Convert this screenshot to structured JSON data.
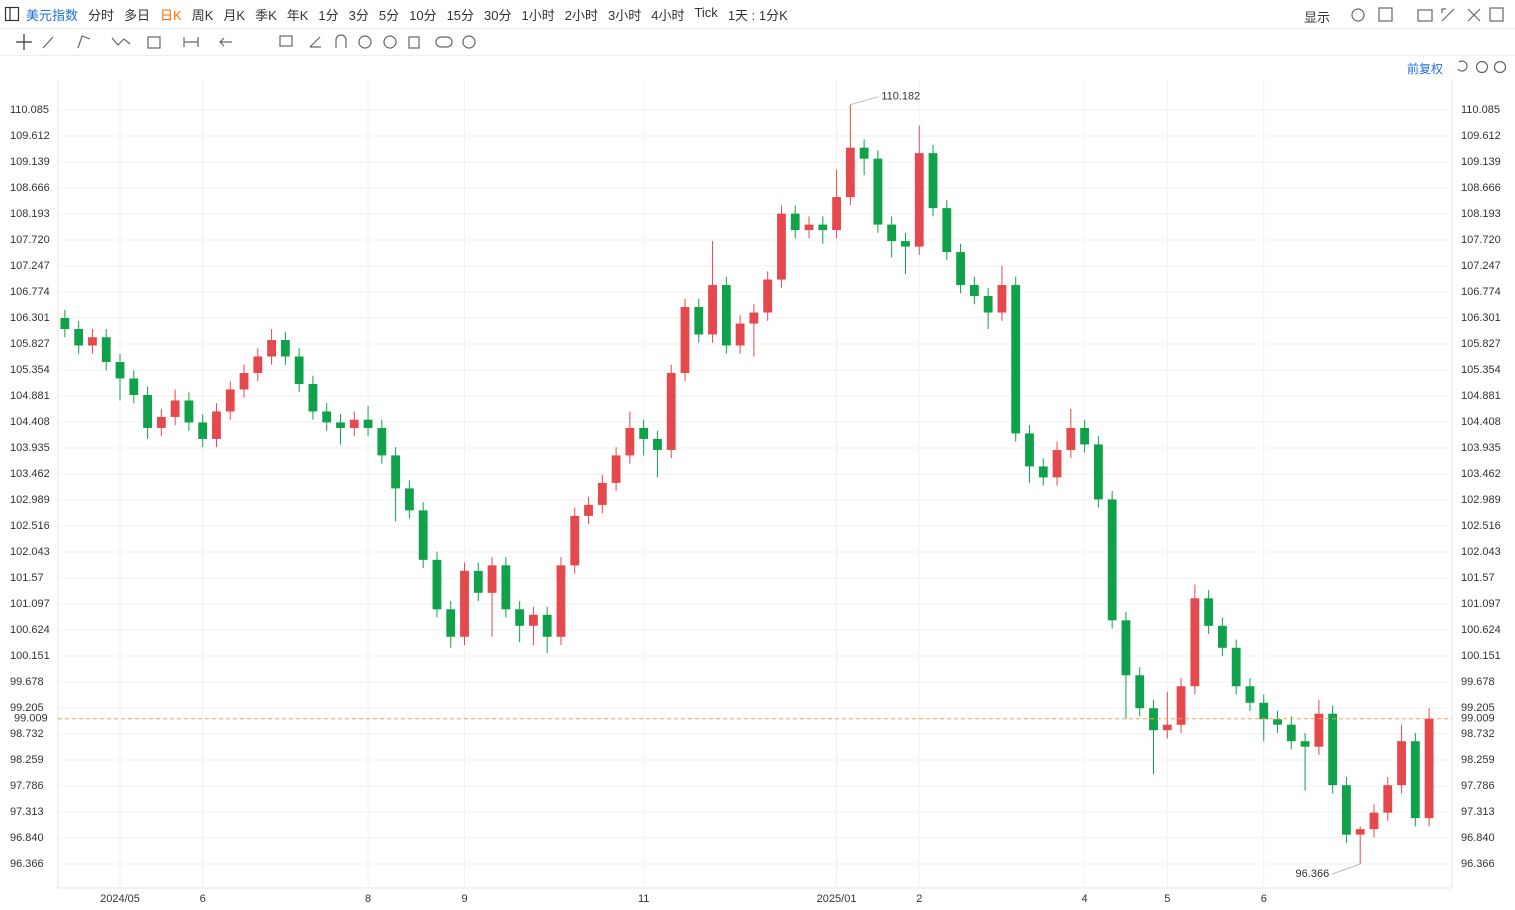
{
  "toolbar": {
    "symbol": "美元指数",
    "periods": [
      "分时",
      "多日",
      "日K",
      "周K",
      "月K",
      "季K",
      "年K",
      "1分",
      "3分",
      "5分",
      "10分",
      "15分",
      "30分",
      "1小时",
      "2小时",
      "3小时",
      "4小时",
      "Tick",
      "1天 : 1分K"
    ],
    "selected": "日K",
    "display": "显示",
    "adjust": "前复权"
  },
  "chart_data": {
    "type": "candlestick",
    "up_color": "#e5484d",
    "down_color": "#0fa24b",
    "grid": true,
    "categories": [
      null,
      null,
      null,
      null,
      "2024/05",
      null,
      null,
      null,
      null,
      null,
      "6",
      null,
      null,
      null,
      null,
      null,
      null,
      null,
      null,
      null,
      null,
      null,
      "8",
      null,
      null,
      null,
      null,
      null,
      null,
      "9",
      null,
      null,
      null,
      null,
      null,
      null,
      null,
      null,
      null,
      null,
      null,
      null,
      "11",
      null,
      null,
      null,
      null,
      null,
      null,
      null,
      null,
      null,
      null,
      null,
      null,
      null,
      "2025/01",
      null,
      null,
      null,
      null,
      null,
      "2",
      null,
      null,
      null,
      null,
      null,
      null,
      null,
      null,
      null,
      null,
      null,
      "4",
      null,
      null,
      null,
      null,
      null,
      "5",
      null,
      null,
      null,
      null,
      null,
      null,
      "6",
      null,
      null,
      null,
      null,
      null,
      null,
      null,
      null,
      null,
      null,
      null,
      null
    ],
    "open": [
      106.3,
      106.1,
      105.8,
      105.95,
      105.5,
      105.2,
      104.9,
      104.3,
      104.5,
      104.8,
      104.4,
      104.1,
      104.6,
      105.0,
      105.3,
      105.6,
      105.9,
      105.6,
      105.1,
      104.6,
      104.4,
      104.3,
      104.45,
      104.3,
      103.8,
      103.2,
      102.8,
      101.9,
      101.0,
      100.5,
      101.7,
      101.3,
      101.8,
      101.0,
      100.7,
      100.9,
      100.5,
      101.8,
      102.7,
      102.9,
      103.3,
      103.8,
      104.3,
      104.1,
      103.9,
      105.3,
      106.5,
      106.0,
      106.9,
      105.8,
      106.2,
      106.4,
      107.0,
      108.2,
      107.9,
      108.0,
      107.9,
      108.5,
      109.4,
      109.2,
      108.0,
      107.7,
      107.6,
      109.3,
      108.3,
      107.5,
      106.9,
      106.7,
      106.4,
      106.9,
      104.2,
      103.6,
      103.4,
      103.9,
      104.3,
      104.0,
      103.0,
      100.8,
      99.8,
      99.2,
      98.8,
      98.9,
      99.6,
      101.2,
      100.7,
      100.3,
      99.6,
      99.3,
      99.0,
      98.9,
      98.6,
      98.5,
      99.1,
      97.8,
      96.9,
      97.0,
      97.3,
      97.8,
      98.6,
      97.2
    ],
    "high": [
      106.45,
      106.25,
      106.1,
      106.1,
      105.65,
      105.35,
      105.05,
      104.65,
      105.0,
      104.95,
      104.55,
      104.75,
      105.15,
      105.45,
      105.75,
      106.1,
      106.05,
      105.75,
      105.25,
      104.75,
      104.55,
      104.6,
      104.7,
      104.45,
      103.95,
      103.35,
      102.95,
      102.05,
      101.15,
      101.85,
      101.85,
      101.95,
      101.95,
      101.15,
      101.05,
      101.05,
      101.95,
      102.85,
      103.05,
      103.45,
      103.95,
      104.6,
      104.45,
      104.25,
      105.45,
      106.65,
      106.65,
      107.7,
      107.05,
      106.35,
      106.55,
      107.15,
      108.35,
      108.35,
      108.15,
      108.15,
      109.0,
      110.182,
      109.55,
      109.35,
      108.15,
      107.85,
      109.8,
      109.45,
      108.45,
      107.65,
      107.05,
      106.85,
      107.25,
      107.05,
      104.35,
      103.75,
      104.05,
      104.65,
      104.45,
      104.15,
      103.15,
      100.95,
      99.95,
      99.35,
      99.5,
      99.75,
      101.45,
      101.35,
      100.85,
      100.45,
      99.75,
      99.45,
      99.15,
      99.05,
      98.75,
      99.35,
      99.25,
      97.95,
      97.05,
      97.45,
      97.95,
      98.9,
      98.75,
      99.2
    ],
    "low": [
      105.95,
      105.65,
      105.65,
      105.35,
      104.8,
      104.75,
      104.1,
      104.15,
      104.35,
      104.25,
      103.95,
      103.95,
      104.45,
      104.85,
      105.15,
      105.45,
      105.45,
      104.95,
      104.45,
      104.25,
      104.0,
      104.15,
      104.15,
      103.65,
      102.6,
      102.65,
      101.75,
      100.85,
      100.3,
      100.35,
      101.15,
      100.5,
      100.85,
      100.4,
      100.35,
      100.2,
      100.35,
      101.65,
      102.55,
      102.75,
      103.15,
      103.65,
      103.8,
      103.4,
      103.75,
      105.15,
      105.85,
      105.85,
      105.65,
      105.65,
      105.6,
      106.25,
      106.85,
      107.75,
      107.75,
      107.65,
      107.75,
      108.35,
      108.9,
      107.85,
      107.4,
      107.1,
      107.45,
      108.15,
      107.35,
      106.75,
      106.55,
      106.1,
      106.25,
      104.05,
      103.3,
      103.25,
      103.25,
      103.75,
      103.85,
      102.85,
      100.65,
      99.0,
      99.05,
      98.0,
      98.65,
      98.75,
      99.45,
      100.55,
      100.15,
      99.45,
      99.15,
      98.6,
      98.75,
      98.45,
      97.7,
      98.35,
      97.65,
      96.75,
      96.366,
      96.85,
      97.15,
      97.65,
      97.05,
      97.05
    ],
    "close": [
      106.1,
      105.8,
      105.95,
      105.5,
      105.2,
      104.9,
      104.3,
      104.5,
      104.8,
      104.4,
      104.1,
      104.6,
      105.0,
      105.3,
      105.6,
      105.9,
      105.6,
      105.1,
      104.6,
      104.4,
      104.3,
      104.45,
      104.3,
      103.8,
      103.2,
      102.8,
      101.9,
      101.0,
      100.5,
      101.7,
      101.3,
      101.8,
      101.0,
      100.7,
      100.9,
      100.5,
      101.8,
      102.7,
      102.9,
      103.3,
      103.8,
      104.3,
      104.1,
      103.9,
      105.3,
      106.5,
      106.0,
      106.9,
      105.8,
      106.2,
      106.4,
      107.0,
      108.2,
      107.9,
      108.0,
      107.9,
      108.5,
      109.4,
      109.2,
      108.0,
      107.7,
      107.6,
      109.3,
      108.3,
      107.5,
      106.9,
      106.7,
      106.4,
      106.9,
      104.2,
      103.6,
      103.4,
      103.9,
      104.3,
      104.0,
      103.0,
      100.8,
      99.8,
      99.2,
      98.8,
      98.9,
      99.6,
      101.2,
      100.7,
      100.3,
      99.6,
      99.3,
      99.0,
      98.9,
      98.6,
      98.5,
      99.1,
      97.8,
      96.9,
      97.0,
      97.3,
      97.8,
      98.6,
      97.2,
      99.009
    ],
    "ylim": [
      95.929,
      110.631
    ],
    "yticks": [
      110.085,
      109.612,
      109.139,
      108.666,
      108.193,
      {
        "value": 107.72,
        "label": "107.720"
      },
      107.247,
      106.774,
      106.301,
      105.827,
      105.354,
      104.881,
      104.408,
      103.935,
      103.462,
      102.989,
      102.516,
      102.043,
      101.57,
      101.097,
      100.624,
      100.151,
      99.678,
      99.205,
      98.732,
      98.259,
      97.786,
      97.313,
      {
        "value": 96.84,
        "label": "96.840"
      },
      96.366
    ],
    "price_line_color": "#f5a05a"
  }
}
